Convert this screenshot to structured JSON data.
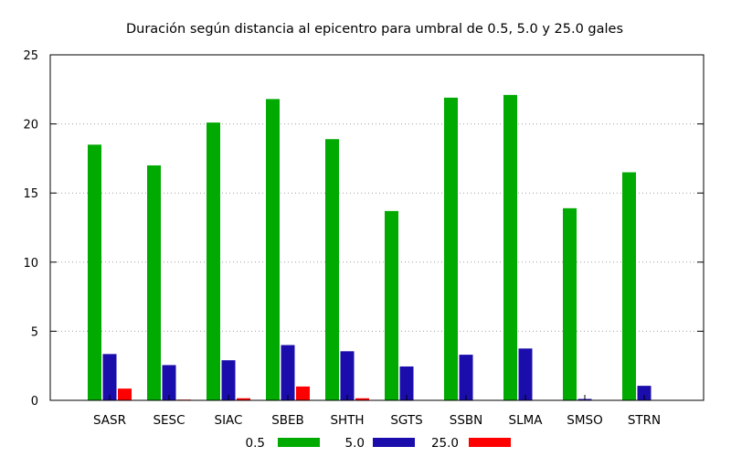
{
  "chart_data": {
    "type": "bar",
    "title": "Duración según distancia al epicentro para umbral de 0.5, 5.0 y 25.0 gales",
    "xlabel": "",
    "ylabel": "",
    "ylim": [
      0,
      25
    ],
    "yticks": [
      0,
      5,
      10,
      15,
      20,
      25
    ],
    "grid": "horizontal-dotted",
    "legend_position": "bottom",
    "categories": [
      "SASR",
      "SESC",
      "SIAC",
      "SBEB",
      "SHTH",
      "SGTS",
      "SSBN",
      "SLMA",
      "SMSO",
      "STRN"
    ],
    "series": [
      {
        "name": "0.5",
        "color": "#00aa00",
        "values": [
          18.5,
          17.0,
          20.1,
          21.8,
          18.9,
          13.7,
          21.9,
          22.1,
          13.9,
          16.5
        ]
      },
      {
        "name": "5.0",
        "color": "#1a0dab",
        "values": [
          3.35,
          2.55,
          2.9,
          4.0,
          3.55,
          2.45,
          3.3,
          3.75,
          0.1,
          1.05
        ]
      },
      {
        "name": "25.0",
        "color": "#ff0000",
        "values": [
          0.85,
          0.05,
          0.15,
          1.0,
          0.15,
          0,
          0,
          0,
          0,
          0
        ]
      }
    ]
  }
}
